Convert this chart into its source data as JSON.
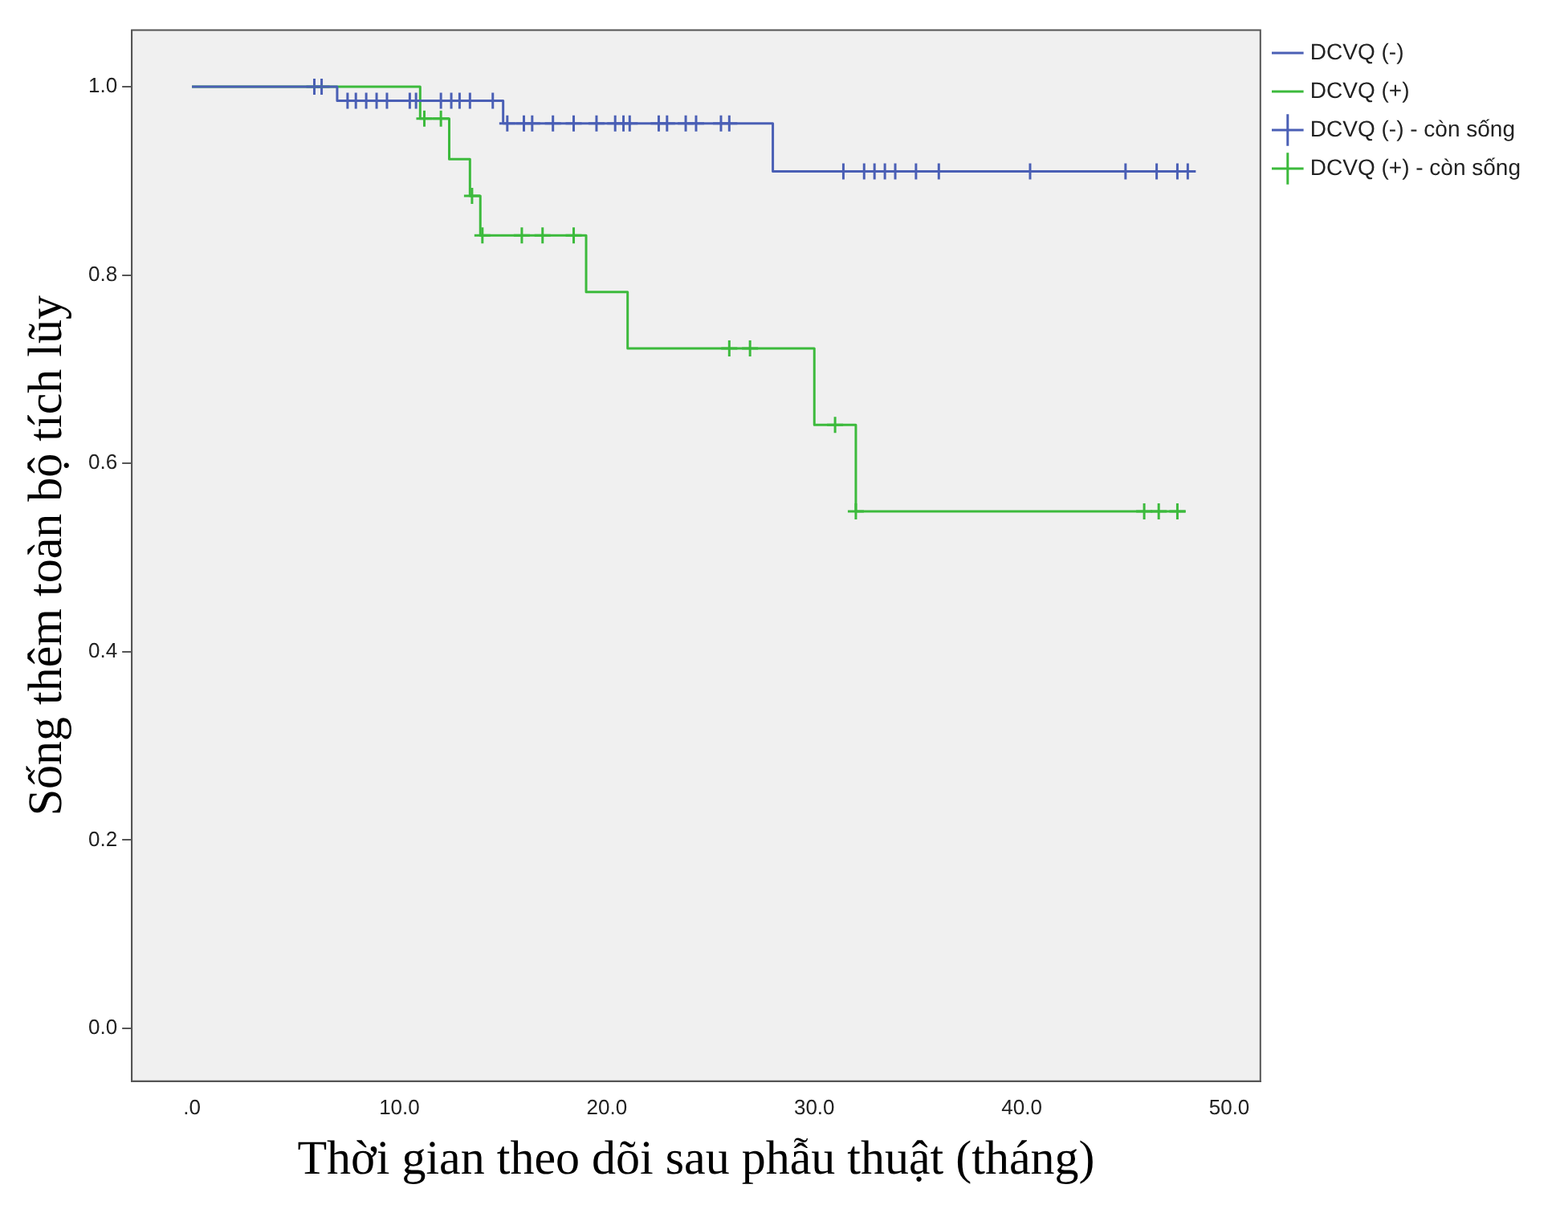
{
  "chart_data": {
    "type": "step",
    "xlabel": "Thời gian theo dõi sau phẫu thuật (tháng)",
    "ylabel": "Sống thêm toàn bộ tích lũy",
    "xlim": [
      -2.9,
      51.5
    ],
    "xticks": [
      {
        "value": 0,
        "label": ".0"
      },
      {
        "value": 10,
        "label": "10.0"
      },
      {
        "value": 20,
        "label": "20.0"
      },
      {
        "value": 30,
        "label": "30.0"
      },
      {
        "value": 40,
        "label": "40.0"
      },
      {
        "value": 50,
        "label": "50.0"
      }
    ],
    "ylim": [
      -0.056,
      1.06
    ],
    "yticks": [
      {
        "value": 0,
        "label": "0.0"
      },
      {
        "value": 0.2,
        "label": "0.2"
      },
      {
        "value": 0.4,
        "label": "0.4"
      },
      {
        "value": 0.6,
        "label": "0.6"
      },
      {
        "value": 0.8,
        "label": "0.8"
      },
      {
        "value": 1,
        "label": "1.0"
      }
    ],
    "grid": false,
    "legend": "right",
    "series": [
      {
        "name": "DCVQ (-)",
        "type": "step",
        "color": "#4a5fb5",
        "x": [
          0,
          7,
          15,
          28,
          48
        ],
        "values": [
          1,
          0.985,
          0.961,
          0.91,
          0.91
        ]
      },
      {
        "name": "DCVQ (+)",
        "type": "step",
        "color": "#3cba3c",
        "x": [
          0,
          11,
          12.4,
          13.4,
          13.9,
          19,
          21,
          30,
          32,
          47.9
        ],
        "values": [
          1,
          0.966,
          0.923,
          0.884,
          0.842,
          0.782,
          0.722,
          0.641,
          0.549,
          0.549
        ]
      },
      {
        "name": "DCVQ (-) - còn sống",
        "type": "scatter",
        "marker": "cross",
        "color": "#4a5fb5",
        "x": [
          5.9,
          6.25,
          7.5,
          7.9,
          8.4,
          8.9,
          9.4,
          10.5,
          10.8,
          12,
          12.5,
          12.9,
          13.4,
          14.5,
          15.2,
          16,
          16.4,
          17.4,
          18.4,
          19.5,
          20.4,
          20.8,
          21.1,
          22.5,
          22.9,
          23.8,
          24.3,
          25.5,
          25.9,
          31.4,
          32.4,
          32.9,
          33.4,
          33.9,
          34.9,
          36,
          40.4,
          45,
          46.5,
          47.5,
          48
        ],
        "values": [
          1,
          1,
          0.985,
          0.985,
          0.985,
          0.985,
          0.985,
          0.985,
          0.985,
          0.985,
          0.985,
          0.985,
          0.985,
          0.985,
          0.961,
          0.961,
          0.961,
          0.961,
          0.961,
          0.961,
          0.961,
          0.961,
          0.961,
          0.961,
          0.961,
          0.961,
          0.961,
          0.961,
          0.961,
          0.91,
          0.91,
          0.91,
          0.91,
          0.91,
          0.91,
          0.91,
          0.91,
          0.91,
          0.91,
          0.91,
          0.91
        ]
      },
      {
        "name": "DCVQ (+) - còn sống",
        "type": "scatter",
        "marker": "cross",
        "color": "#3cba3c",
        "x": [
          11.2,
          12,
          13.5,
          14,
          15.9,
          16.9,
          18.4,
          25.9,
          26.9,
          31,
          32,
          45.9,
          46.6,
          47.5
        ],
        "values": [
          0.966,
          0.966,
          0.884,
          0.842,
          0.842,
          0.842,
          0.842,
          0.722,
          0.722,
          0.641,
          0.549,
          0.549,
          0.549,
          0.549
        ]
      }
    ]
  }
}
